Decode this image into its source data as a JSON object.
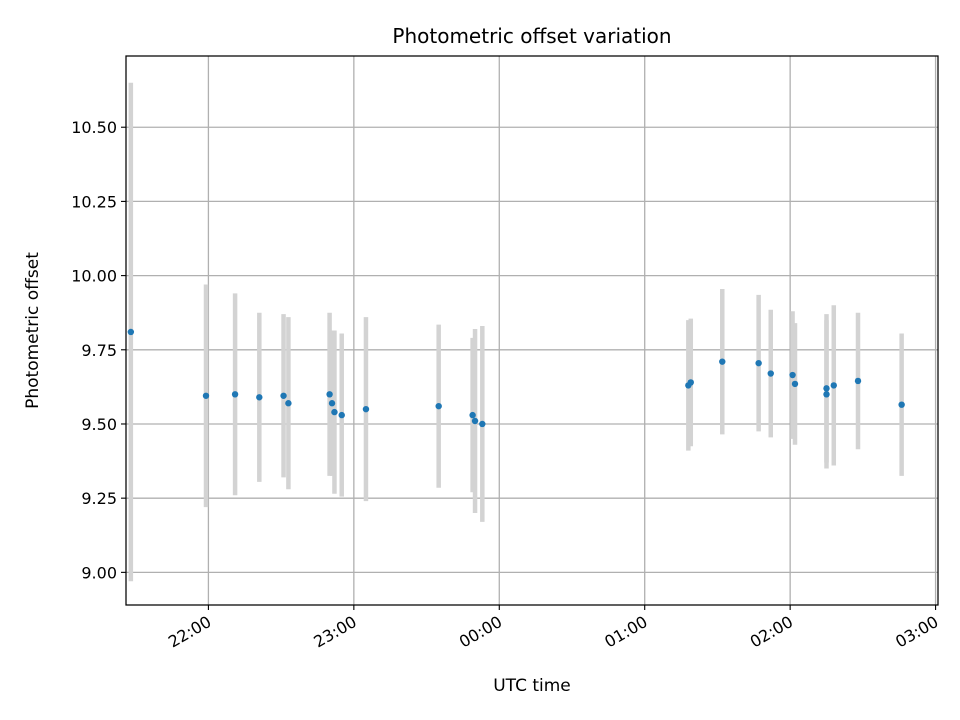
{
  "chart_data": {
    "type": "scatter",
    "title": "Photometric offset variation",
    "xlabel": "UTC time",
    "ylabel": "Photometric offset",
    "x_unit": "UTC clock time (times after midnight belong to the next night)",
    "x_ticks": [
      "22:00",
      "23:00",
      "00:00",
      "01:00",
      "02:00",
      "03:00"
    ],
    "y_ticks": [
      "9.00",
      "9.25",
      "9.50",
      "9.75",
      "10.00",
      "10.25",
      "10.50"
    ],
    "xlim": [
      "21:26",
      "03:01"
    ],
    "ylim": [
      8.89,
      10.74
    ],
    "grid": true,
    "colors": {
      "points": "#1f77b4",
      "errorbars": "#d3d3d3",
      "grid": "#b0b0b0"
    },
    "points": [
      {
        "x": "21:28",
        "y": 9.81,
        "err": 0.84
      },
      {
        "x": "21:59",
        "y": 9.595,
        "err": 0.375
      },
      {
        "x": "22:11",
        "y": 9.6,
        "err": 0.34
      },
      {
        "x": "22:21",
        "y": 9.59,
        "err": 0.285
      },
      {
        "x": "22:31",
        "y": 9.595,
        "err": 0.275
      },
      {
        "x": "22:33",
        "y": 9.57,
        "err": 0.29
      },
      {
        "x": "22:50",
        "y": 9.6,
        "err": 0.275
      },
      {
        "x": "22:51",
        "y": 9.57,
        "err": 0.245
      },
      {
        "x": "22:52",
        "y": 9.54,
        "err": 0.275
      },
      {
        "x": "22:55",
        "y": 9.53,
        "err": 0.275
      },
      {
        "x": "23:05",
        "y": 9.55,
        "err": 0.31
      },
      {
        "x": "23:35",
        "y": 9.56,
        "err": 0.275
      },
      {
        "x": "23:49",
        "y": 9.53,
        "err": 0.26
      },
      {
        "x": "23:50",
        "y": 9.51,
        "err": 0.31
      },
      {
        "x": "23:53",
        "y": 9.5,
        "err": 0.33
      },
      {
        "x": "01:18",
        "y": 9.63,
        "err": 0.22
      },
      {
        "x": "01:19",
        "y": 9.64,
        "err": 0.215
      },
      {
        "x": "01:32",
        "y": 9.71,
        "err": 0.245
      },
      {
        "x": "01:47",
        "y": 9.705,
        "err": 0.23
      },
      {
        "x": "01:52",
        "y": 9.67,
        "err": 0.215
      },
      {
        "x": "02:01",
        "y": 9.665,
        "err": 0.215
      },
      {
        "x": "02:02",
        "y": 9.635,
        "err": 0.205
      },
      {
        "x": "02:15",
        "y": 9.6,
        "err": 0.25
      },
      {
        "x": "02:15",
        "y": 9.62,
        "err": 0.25
      },
      {
        "x": "02:18",
        "y": 9.63,
        "err": 0.27
      },
      {
        "x": "02:28",
        "y": 9.645,
        "err": 0.23
      },
      {
        "x": "02:46",
        "y": 9.565,
        "err": 0.24
      }
    ]
  }
}
